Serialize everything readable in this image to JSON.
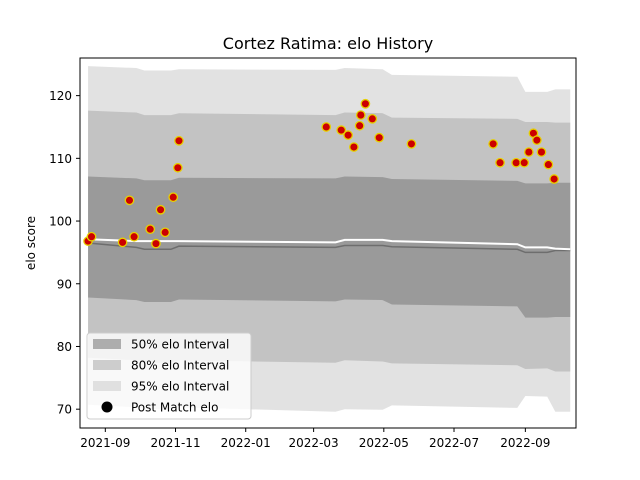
{
  "chart_data": {
    "type": "area",
    "title": "Cortez Ratima: elo History",
    "xlabel": "",
    "ylabel": "elo score",
    "xlim": [
      "2021-08-10",
      "2022-10-15"
    ],
    "ylim": [
      67,
      126
    ],
    "x_ticks": [
      "2021-09-01",
      "2021-11-01",
      "2022-01-01",
      "2022-03-01",
      "2022-05-01",
      "2022-07-01",
      "2022-09-01"
    ],
    "x_tick_labels": [
      "2021-09",
      "2021-11",
      "2022-01",
      "2022-03",
      "2022-05",
      "2022-07",
      "2022-09"
    ],
    "y_ticks": [
      70,
      80,
      90,
      100,
      110,
      120
    ],
    "grid": false,
    "legend_position": "lower left",
    "legend": [
      {
        "label": "50% elo Interval",
        "kind": "patch",
        "color": "#7f7f7f",
        "opacity": 0.6
      },
      {
        "label": "80% elo Interval",
        "kind": "patch",
        "color": "#a9a9a9",
        "opacity": 0.55
      },
      {
        "label": "95% elo Interval",
        "kind": "patch",
        "color": "#d3d3d3",
        "opacity": 0.65
      },
      {
        "label": "Post Match elo",
        "kind": "marker",
        "color": "#000000"
      }
    ],
    "bands": {
      "x": [
        "2021-08-17",
        "2021-09-28",
        "2021-10-05",
        "2021-10-28",
        "2021-11-04",
        "2022-03-20",
        "2022-03-28",
        "2022-04-30",
        "2022-05-08",
        "2022-08-25",
        "2022-09-01",
        "2022-09-20",
        "2022-09-27",
        "2022-10-10"
      ],
      "median": [
        96.5,
        95.8,
        95.5,
        95.5,
        96.0,
        95.8,
        96.1,
        96.1,
        95.9,
        95.5,
        95.0,
        95.0,
        95.3,
        95.3
      ],
      "band50": {
        "upper": [
          107.1,
          106.8,
          106.5,
          106.5,
          106.9,
          106.8,
          107.1,
          107.0,
          106.7,
          106.4,
          106.0,
          106.0,
          106.1,
          106.1
        ],
        "lower": [
          87.8,
          87.4,
          87.1,
          87.1,
          87.5,
          87.2,
          87.5,
          87.4,
          86.7,
          86.4,
          84.6,
          84.6,
          84.7,
          84.7
        ]
      },
      "band80": {
        "upper": [
          117.6,
          117.3,
          116.9,
          116.9,
          117.2,
          116.9,
          117.3,
          117.2,
          116.5,
          116.3,
          115.8,
          115.8,
          115.7,
          115.7
        ],
        "lower": [
          78.2,
          77.8,
          77.4,
          77.4,
          77.8,
          77.4,
          77.8,
          77.6,
          77.3,
          77.0,
          76.4,
          76.5,
          76.0,
          76.0
        ],
        "lower_end": 76.0
      },
      "band95": {
        "upper": [
          124.7,
          124.4,
          124.0,
          124.0,
          124.2,
          124.1,
          124.4,
          124.2,
          123.3,
          123.0,
          120.6,
          120.6,
          121.0,
          121.0
        ],
        "lower": [
          70.7,
          70.3,
          70.0,
          70.0,
          70.3,
          69.6,
          70.0,
          69.9,
          70.6,
          70.2,
          72.1,
          72.0,
          69.6,
          69.6
        ]
      }
    },
    "expected_line": {
      "x": [
        "2021-08-17",
        "2021-09-28",
        "2021-10-20",
        "2021-11-04",
        "2022-03-20",
        "2022-03-28",
        "2022-04-30",
        "2022-05-08",
        "2022-08-25",
        "2022-09-01",
        "2022-09-20",
        "2022-09-27",
        "2022-10-10"
      ],
      "values": [
        97.1,
        96.8,
        96.8,
        96.8,
        96.6,
        97.0,
        97.0,
        96.8,
        96.3,
        95.8,
        95.8,
        95.6,
        95.5
      ]
    },
    "series": [
      {
        "name": "Post Match elo",
        "marker_face": "#cc0000",
        "marker_edge": "#e6d000",
        "points": [
          {
            "x": "2021-08-17",
            "y": 96.8
          },
          {
            "x": "2021-08-20",
            "y": 97.5
          },
          {
            "x": "2021-09-16",
            "y": 96.6
          },
          {
            "x": "2021-09-22",
            "y": 103.3
          },
          {
            "x": "2021-09-26",
            "y": 97.5
          },
          {
            "x": "2021-10-10",
            "y": 98.7
          },
          {
            "x": "2021-10-15",
            "y": 96.4
          },
          {
            "x": "2021-10-19",
            "y": 101.8
          },
          {
            "x": "2021-10-23",
            "y": 98.2
          },
          {
            "x": "2021-10-30",
            "y": 103.8
          },
          {
            "x": "2021-11-03",
            "y": 108.5
          },
          {
            "x": "2021-11-04",
            "y": 112.8
          },
          {
            "x": "2022-03-12",
            "y": 115.0
          },
          {
            "x": "2022-03-25",
            "y": 114.5
          },
          {
            "x": "2022-03-31",
            "y": 113.7
          },
          {
            "x": "2022-04-05",
            "y": 111.8
          },
          {
            "x": "2022-04-10",
            "y": 115.2
          },
          {
            "x": "2022-04-11",
            "y": 116.9
          },
          {
            "x": "2022-04-15",
            "y": 118.7
          },
          {
            "x": "2022-04-21",
            "y": 116.3
          },
          {
            "x": "2022-04-27",
            "y": 113.3
          },
          {
            "x": "2022-05-25",
            "y": 112.3
          },
          {
            "x": "2022-08-04",
            "y": 112.3
          },
          {
            "x": "2022-08-10",
            "y": 109.3
          },
          {
            "x": "2022-08-24",
            "y": 109.3
          },
          {
            "x": "2022-08-31",
            "y": 109.3
          },
          {
            "x": "2022-09-04",
            "y": 111.0
          },
          {
            "x": "2022-09-08",
            "y": 114.0
          },
          {
            "x": "2022-09-11",
            "y": 112.9
          },
          {
            "x": "2022-09-15",
            "y": 111.0
          },
          {
            "x": "2022-09-21",
            "y": 109.0
          },
          {
            "x": "2022-09-26",
            "y": 106.7
          }
        ]
      }
    ]
  }
}
